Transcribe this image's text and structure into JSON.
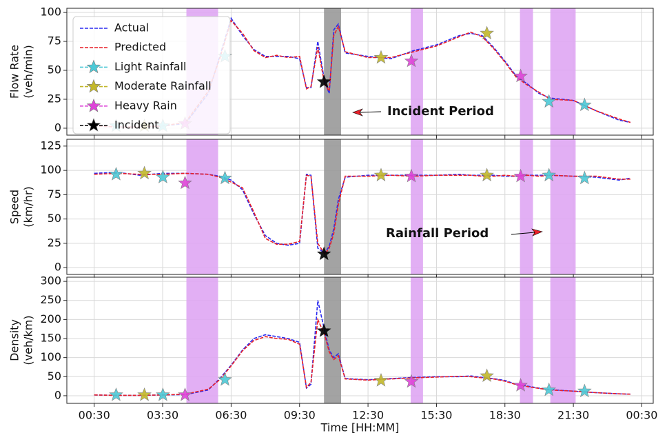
{
  "chart_data": [
    {
      "type": "line",
      "ylabel": [
        "Flow Rate",
        "(veh/min)"
      ],
      "ylim": [
        -6,
        103.6
      ],
      "yticks": [
        0,
        25,
        50,
        75,
        100
      ],
      "grid": true,
      "legend": "upper left",
      "annotations": [
        "Incident Period"
      ],
      "spans": [
        {
          "x": [
            4.54,
            5.93
          ],
          "color": "#dfa6f3"
        },
        {
          "x": [
            14.37,
            14.91
          ],
          "color": "#dfa6f3"
        },
        {
          "x": [
            19.16,
            19.73
          ],
          "color": "#dfa6f3"
        },
        {
          "x": [
            20.49,
            21.6
          ],
          "color": "#dfa6f3"
        },
        {
          "x": [
            10.57,
            11.32
          ],
          "color": "#999999"
        }
      ],
      "x": [
        0.5,
        1.5,
        2.5,
        3.5,
        4.5,
        5.5,
        6,
        6.5,
        7,
        7.5,
        8,
        8.5,
        9,
        9.5,
        9.8,
        10,
        10.3,
        10.6,
        10.8,
        11,
        11.2,
        11.5,
        12.5,
        13.5,
        14.5,
        15.5,
        16.5,
        17,
        17.5,
        18,
        18.5,
        19,
        19.5,
        20,
        20.5,
        21.5,
        22.5,
        23.5,
        24
      ],
      "series": [
        {
          "name": "Actual",
          "color": "#2a2af0",
          "values": [
            2,
            1,
            1,
            2,
            4,
            30,
            62,
            95,
            80,
            68,
            62,
            62,
            62,
            60,
            35,
            35,
            75,
            40,
            30,
            85,
            90,
            65,
            62,
            60,
            67,
            72,
            80,
            82,
            80,
            70,
            58,
            45,
            38,
            30,
            26,
            24,
            15,
            7,
            5
          ]
        },
        {
          "name": "Predicted",
          "color": "#e8202a",
          "values": [
            2,
            1,
            1,
            2,
            5,
            32,
            60,
            93,
            82,
            67,
            61,
            63,
            61,
            62,
            34,
            36,
            70,
            38,
            32,
            80,
            88,
            66,
            61,
            61,
            66,
            71,
            79,
            83,
            79,
            69,
            57,
            44,
            37,
            31,
            25,
            24,
            15,
            8,
            5
          ]
        },
        {
          "name": "Light Rainfall",
          "color": "#4cc9d6",
          "marker": "star",
          "x": [
            1.46,
            3.51,
            6.23,
            20.43,
            21.99
          ],
          "values": [
            2,
            2,
            62,
            23,
            20
          ]
        },
        {
          "name": "Moderate Rainfall",
          "color": "#c2b72a",
          "marker": "star",
          "x": [
            2.7,
            13.07,
            17.71
          ],
          "values": [
            2,
            61,
            82
          ]
        },
        {
          "name": "Heavy Rain",
          "color": "#de44d8",
          "marker": "star",
          "x": [
            4.48,
            14.4,
            19.19
          ],
          "values": [
            4,
            58,
            45
          ]
        },
        {
          "name": "Incident",
          "color": "#000000",
          "marker": "star",
          "x": [
            10.57
          ],
          "values": [
            40
          ]
        }
      ]
    },
    {
      "type": "line",
      "ylabel": [
        "Speed",
        "(km/hr)"
      ],
      "ylim": [
        -7,
        132
      ],
      "yticks": [
        0,
        25,
        50,
        75,
        100,
        125
      ],
      "grid": true,
      "annotations": [
        "Rainfall Period"
      ],
      "x": [
        0.5,
        1.5,
        2.5,
        3.5,
        4.5,
        5.5,
        6,
        6.5,
        7,
        7.5,
        8,
        8.5,
        9,
        9.5,
        9.8,
        10,
        10.3,
        10.6,
        10.8,
        11,
        11.2,
        11.5,
        12.5,
        13.5,
        14.5,
        15.5,
        16.5,
        17,
        17.5,
        18,
        18.5,
        19,
        19.5,
        20,
        20.5,
        21.5,
        22.5,
        23.5,
        24
      ],
      "series": [
        {
          "color": "#2a2af0",
          "values": [
            97,
            98,
            95,
            97,
            97,
            96,
            94,
            90,
            80,
            55,
            33,
            25,
            23,
            25,
            96,
            95,
            20,
            15,
            22,
            40,
            70,
            93,
            95,
            95,
            95,
            95,
            96,
            95,
            95,
            95,
            94,
            94,
            95,
            95,
            95,
            94,
            93,
            90,
            92
          ]
        },
        {
          "color": "#e8202a",
          "values": [
            96,
            97,
            96,
            96,
            97,
            96,
            93,
            88,
            82,
            57,
            30,
            24,
            24,
            27,
            95,
            94,
            25,
            14,
            20,
            35,
            65,
            94,
            94,
            95,
            94,
            95,
            95,
            95,
            94,
            94,
            95,
            94,
            95,
            94,
            95,
            94,
            94,
            91,
            91
          ]
        },
        {
          "color": "#4cc9d6",
          "marker": "star",
          "x": [
            1.46,
            3.51,
            6.23,
            20.43,
            21.99
          ],
          "values": [
            96,
            93,
            92,
            95,
            92
          ]
        },
        {
          "color": "#c2b72a",
          "marker": "star",
          "x": [
            2.7,
            13.07,
            17.71
          ],
          "values": [
            97,
            95,
            95
          ]
        },
        {
          "color": "#de44d8",
          "marker": "star",
          "x": [
            4.48,
            14.4,
            19.19
          ],
          "values": [
            87,
            94,
            94
          ]
        },
        {
          "color": "#000000",
          "marker": "star",
          "x": [
            10.57
          ],
          "values": [
            14
          ]
        }
      ]
    },
    {
      "type": "line",
      "ylabel": [
        "Density",
        "(veh/km)"
      ],
      "xlabel": "Time [HH:MM]",
      "ylim": [
        -20,
        311
      ],
      "yticks": [
        0,
        50,
        100,
        150,
        200,
        250,
        300
      ],
      "grid": true,
      "xlim": [
        -0.7,
        25
      ],
      "xticks": [
        {
          "value": 0.5,
          "label": "00:30"
        },
        {
          "value": 3.5,
          "label": "03:30"
        },
        {
          "value": 6.5,
          "label": "06:30"
        },
        {
          "value": 9.5,
          "label": "09:30"
        },
        {
          "value": 12.5,
          "label": "12:30"
        },
        {
          "value": 15.5,
          "label": "15:30"
        },
        {
          "value": 18.5,
          "label": "18:30"
        },
        {
          "value": 21.5,
          "label": "21:30"
        },
        {
          "value": 24.5,
          "label": "00:30"
        }
      ],
      "x": [
        0.5,
        1.5,
        2.5,
        3.5,
        4.5,
        5.5,
        6,
        6.5,
        7,
        7.5,
        8,
        8.5,
        9,
        9.5,
        9.8,
        10,
        10.3,
        10.6,
        10.8,
        11,
        11.2,
        11.5,
        12.5,
        13.5,
        14.5,
        15.5,
        16.5,
        17,
        17.5,
        18,
        18.5,
        19,
        19.5,
        20,
        20.5,
        21.5,
        22.5,
        23.5,
        24
      ],
      "series": [
        {
          "color": "#2a2af0",
          "values": [
            2,
            1,
            1,
            2,
            3,
            15,
            45,
            80,
            120,
            150,
            160,
            155,
            150,
            140,
            20,
            30,
            250,
            170,
            120,
            100,
            110,
            45,
            42,
            45,
            48,
            50,
            50,
            52,
            48,
            45,
            40,
            30,
            25,
            20,
            16,
            12,
            8,
            5,
            4
          ]
        },
        {
          "color": "#e8202a",
          "values": [
            2,
            1,
            1,
            2,
            4,
            17,
            42,
            78,
            118,
            145,
            155,
            150,
            148,
            135,
            22,
            35,
            200,
            160,
            115,
            95,
            105,
            44,
            41,
            44,
            47,
            49,
            51,
            50,
            47,
            44,
            38,
            29,
            24,
            19,
            15,
            12,
            8,
            5,
            4
          ]
        },
        {
          "color": "#4cc9d6",
          "marker": "star",
          "x": [
            1.46,
            3.51,
            6.23,
            20.43,
            21.99
          ],
          "values": [
            2,
            2,
            42,
            15,
            12
          ]
        },
        {
          "color": "#c2b72a",
          "marker": "star",
          "x": [
            2.7,
            13.07,
            17.71
          ],
          "values": [
            2,
            40,
            52
          ]
        },
        {
          "color": "#de44d8",
          "marker": "star",
          "x": [
            4.48,
            14.4,
            19.19
          ],
          "values": [
            2,
            37,
            27
          ]
        },
        {
          "color": "#000000",
          "marker": "star",
          "x": [
            10.57
          ],
          "values": [
            170
          ]
        }
      ]
    }
  ]
}
